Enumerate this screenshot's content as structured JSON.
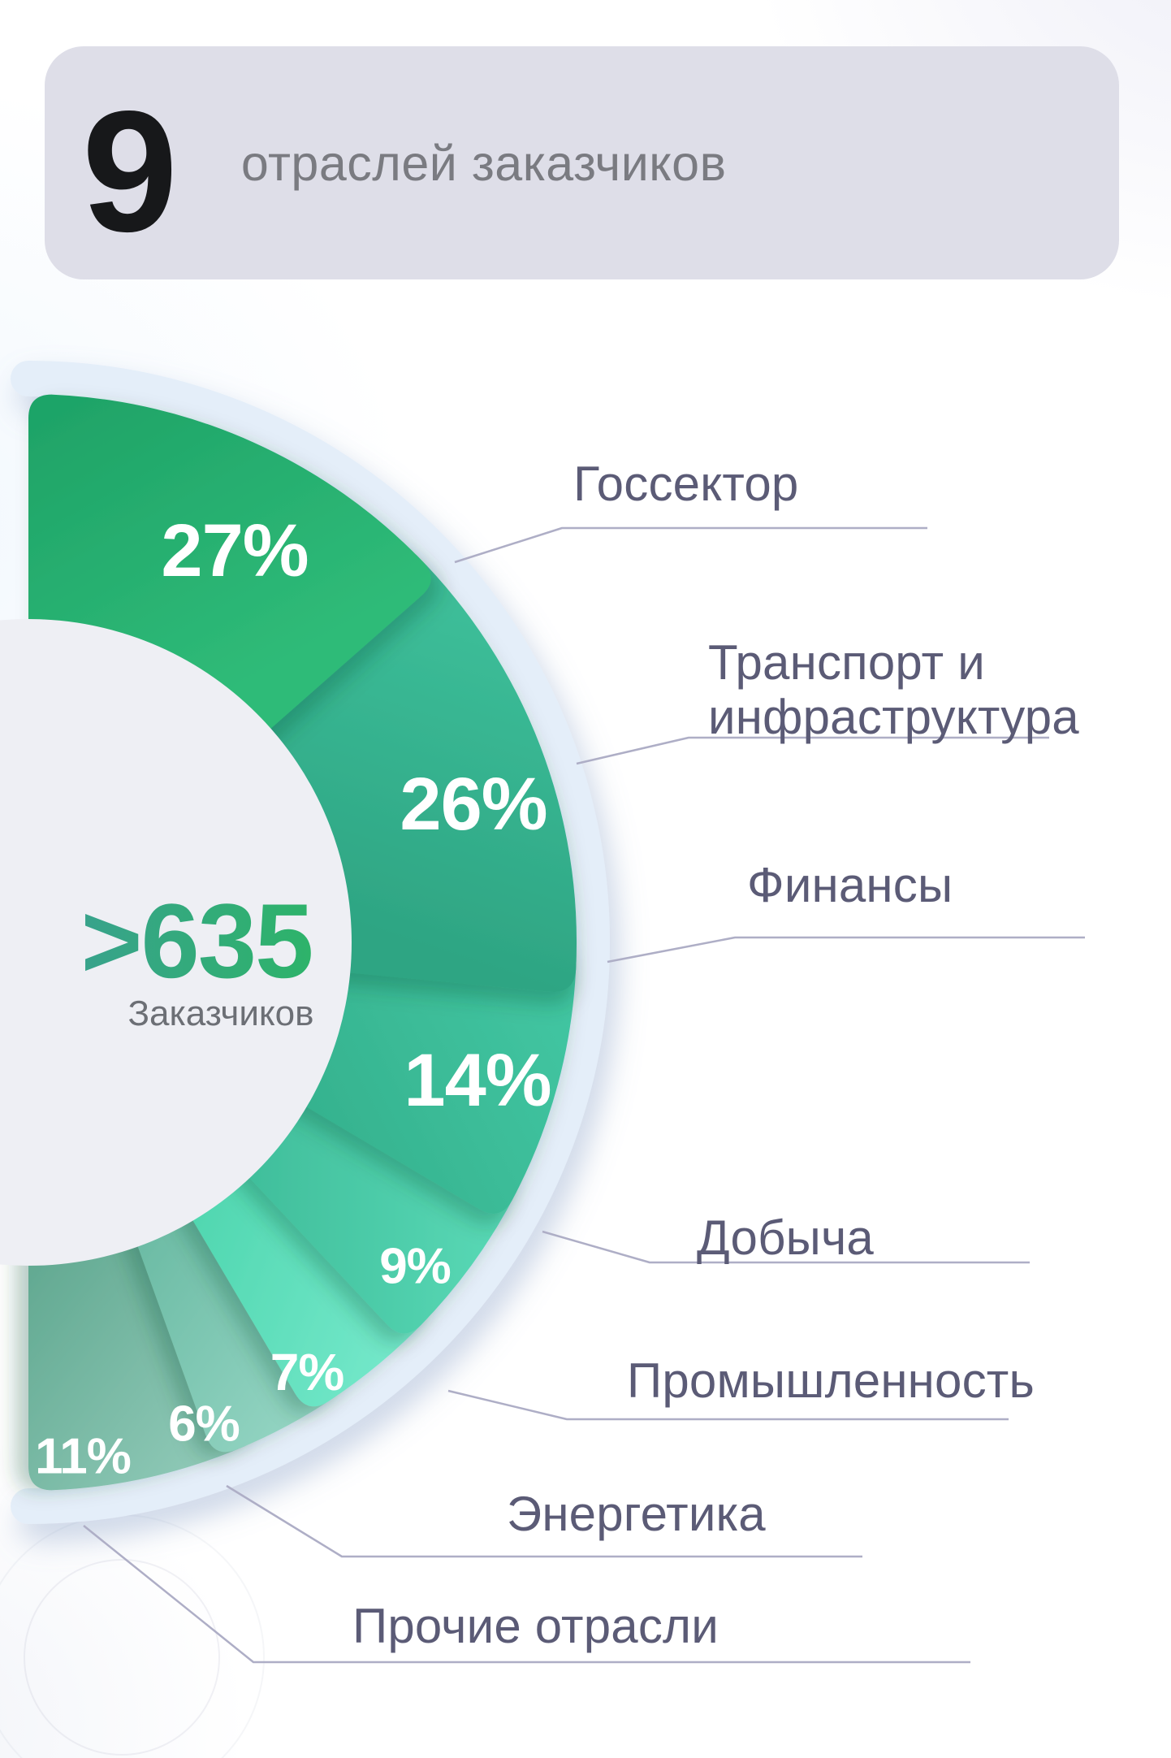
{
  "header": {
    "count": "9",
    "subtitle": "отраслей заказчиков"
  },
  "chart_data": {
    "type": "pie",
    "variant": "semicircle-donut",
    "title": "9 отраслей заказчиков",
    "unit": "%",
    "center_value": ">635",
    "center_caption": "Заказчиков",
    "segments": [
      {
        "label": "Госсектор",
        "value": 27,
        "value_label": "27%",
        "color_from": "#1fa468",
        "color_to": "#2fbb78"
      },
      {
        "label": "Транспорт и инфраструктура",
        "value": 26,
        "value_label": "26%",
        "color_from": "#3cbd98",
        "color_to": "#2ea583"
      },
      {
        "label": "Финансы",
        "value": 14,
        "value_label": "14%",
        "color_from": "#42c6a2",
        "color_to": "#35b28e"
      },
      {
        "label": "Добыча",
        "value": 9,
        "value_label": "9%",
        "color_from": "#58d8b5",
        "color_to": "#3fbd9a"
      },
      {
        "label": "Промышленность",
        "value": 7,
        "value_label": "7%",
        "color_from": "#74e8ca",
        "color_to": "#4fd6af"
      },
      {
        "label": "Энергетика",
        "value": 6,
        "value_label": "6%",
        "color_from": "#93d4c2",
        "color_to": "#6bbba4"
      },
      {
        "label": "Прочие отрасли",
        "value": 11,
        "value_label": "11%",
        "color_from": "#8fc9b7",
        "color_to": "#5fa78f"
      }
    ],
    "colors": {
      "value_text": "#ffffff",
      "label_text": "#5b5b76",
      "callout_line": "#aeaec6",
      "outer_ring": "#e4eef9",
      "inner_circle": "#eeeff4",
      "center_value_from": "#38a28c",
      "center_value_to": "#2db468",
      "center_caption": "#6c6f75",
      "header_card_bg": "#dedee8"
    }
  }
}
